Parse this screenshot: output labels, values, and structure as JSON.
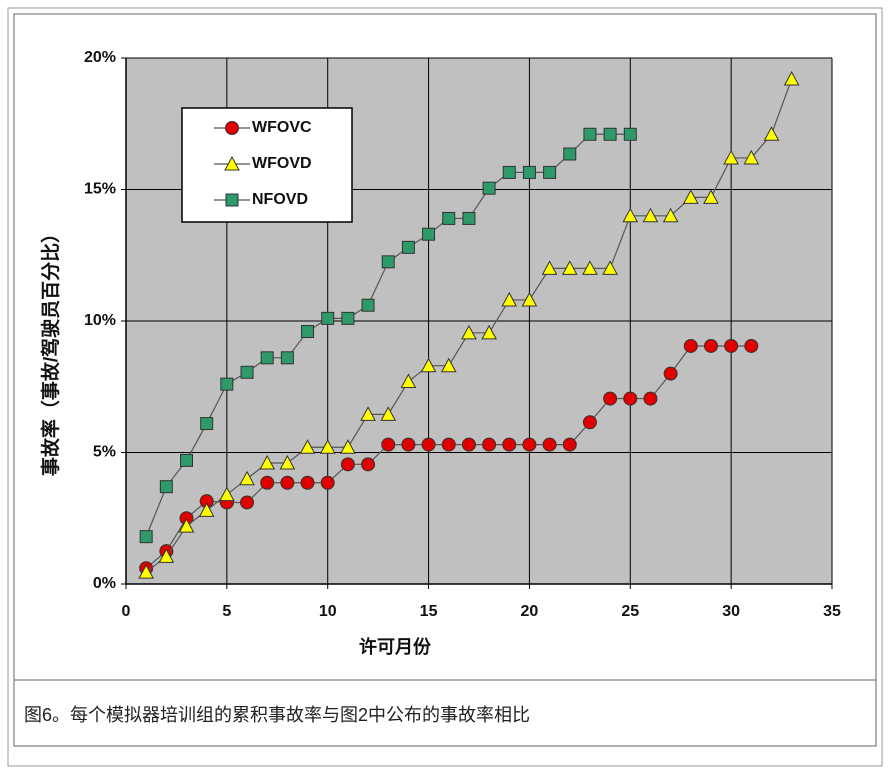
{
  "chart_data": {
    "type": "line",
    "x_label": "许可月份",
    "y_label": "事故率（事故/驾驶员百分比）",
    "xlim": [
      0,
      35
    ],
    "xticks": [
      0,
      5,
      10,
      15,
      20,
      25,
      30,
      35
    ],
    "ylim": [
      0,
      20
    ],
    "yticks": [
      {
        "value": 0,
        "label": "0%"
      },
      {
        "value": 5,
        "label": "5%"
      },
      {
        "value": 10,
        "label": "10%"
      },
      {
        "value": 15,
        "label": "15%"
      },
      {
        "value": 20,
        "label": "20%"
      }
    ],
    "grid": true,
    "legend": "upper left",
    "series": [
      {
        "name": "WFOVC",
        "color": "#e00000",
        "marker": "circle",
        "x": [
          1,
          2,
          3,
          4,
          5,
          6,
          7,
          8,
          9,
          10,
          11,
          12,
          13,
          14,
          15,
          16,
          17,
          18,
          19,
          20,
          21,
          22,
          23,
          24,
          25,
          26,
          27,
          28,
          29,
          30,
          31
        ],
        "values": [
          0.6,
          1.25,
          2.5,
          3.15,
          3.1,
          3.1,
          3.85,
          3.85,
          3.85,
          3.85,
          4.55,
          4.55,
          5.3,
          5.3,
          5.3,
          5.3,
          5.3,
          5.3,
          5.3,
          5.3,
          5.3,
          5.3,
          6.15,
          7.05,
          7.05,
          7.05,
          8.0,
          9.05,
          9.05,
          9.05,
          9.05
        ]
      },
      {
        "name": "WFOVD",
        "color": "#ffff00",
        "marker": "triangle",
        "x": [
          1,
          2,
          3,
          4,
          5,
          6,
          7,
          8,
          9,
          10,
          11,
          12,
          13,
          14,
          15,
          16,
          17,
          18,
          19,
          20,
          21,
          22,
          23,
          24,
          25,
          26,
          27,
          28,
          29,
          30,
          31,
          32,
          33
        ],
        "values": [
          0.45,
          1.05,
          2.2,
          2.8,
          3.4,
          4.0,
          4.6,
          4.6,
          5.2,
          5.2,
          5.2,
          6.45,
          6.45,
          7.7,
          8.3,
          8.3,
          9.55,
          9.55,
          10.8,
          10.8,
          12.0,
          12.0,
          12.0,
          12.0,
          14.0,
          14.0,
          14.0,
          14.7,
          14.7,
          16.2,
          16.2,
          17.1,
          19.2
        ]
      },
      {
        "name": "NFOVD",
        "color": "#2e9a6a",
        "marker": "square",
        "x": [
          1,
          2,
          3,
          4,
          5,
          6,
          7,
          8,
          9,
          10,
          11,
          12,
          13,
          14,
          15,
          16,
          17,
          18,
          19,
          20,
          21,
          22,
          23,
          24,
          25
        ],
        "values": [
          1.8,
          3.7,
          4.7,
          6.1,
          7.6,
          8.05,
          8.6,
          8.6,
          9.6,
          10.1,
          10.1,
          10.6,
          12.25,
          12.8,
          13.3,
          13.9,
          13.9,
          15.05,
          15.65,
          15.65,
          15.65,
          16.35,
          17.1,
          17.1,
          17.1
        ]
      }
    ]
  },
  "caption": "图6。每个模拟器培训组的累积事故率与图2中公布的事故率相比"
}
